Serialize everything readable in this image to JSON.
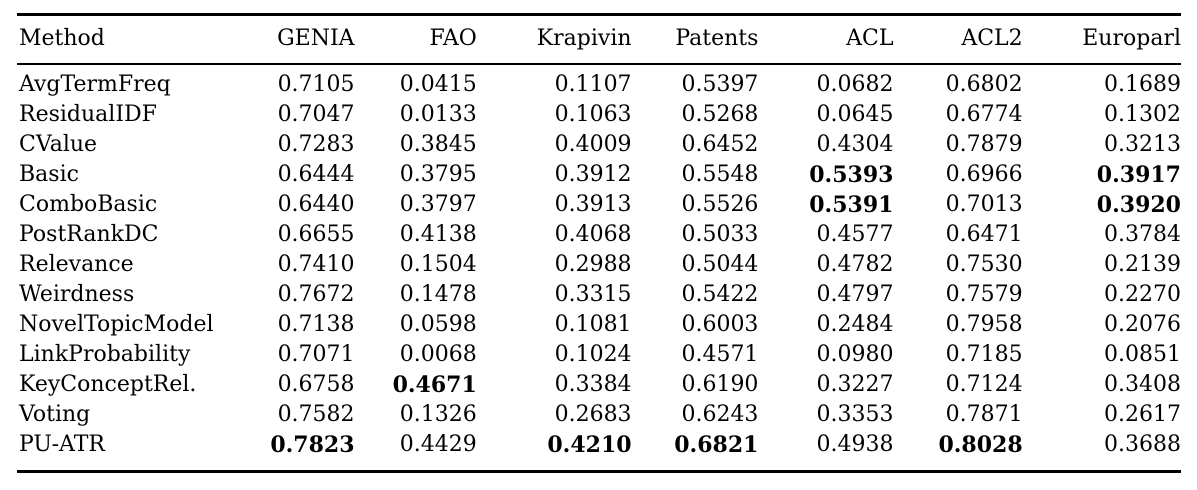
{
  "table": {
    "columns": [
      "Method",
      "GENIA",
      "FAO",
      "Krapivin",
      "Patents",
      "ACL",
      "ACL2",
      "Europarl"
    ],
    "rows": [
      {
        "method": "AvgTermFreq",
        "values": [
          "0.7105",
          "0.0415",
          "0.1107",
          "0.5397",
          "0.0682",
          "0.6802",
          "0.1689"
        ],
        "bold": [
          false,
          false,
          false,
          false,
          false,
          false,
          false
        ]
      },
      {
        "method": "ResidualIDF",
        "values": [
          "0.7047",
          "0.0133",
          "0.1063",
          "0.5268",
          "0.0645",
          "0.6774",
          "0.1302"
        ],
        "bold": [
          false,
          false,
          false,
          false,
          false,
          false,
          false
        ]
      },
      {
        "method": "CValue",
        "values": [
          "0.7283",
          "0.3845",
          "0.4009",
          "0.6452",
          "0.4304",
          "0.7879",
          "0.3213"
        ],
        "bold": [
          false,
          false,
          false,
          false,
          false,
          false,
          false
        ]
      },
      {
        "method": "Basic",
        "values": [
          "0.6444",
          "0.3795",
          "0.3912",
          "0.5548",
          "0.5393",
          "0.6966",
          "0.3917"
        ],
        "bold": [
          false,
          false,
          false,
          false,
          true,
          false,
          true
        ]
      },
      {
        "method": "ComboBasic",
        "values": [
          "0.6440",
          "0.3797",
          "0.3913",
          "0.5526",
          "0.5391",
          "0.7013",
          "0.3920"
        ],
        "bold": [
          false,
          false,
          false,
          false,
          true,
          false,
          true
        ]
      },
      {
        "method": "PostRankDC",
        "values": [
          "0.6655",
          "0.4138",
          "0.4068",
          "0.5033",
          "0.4577",
          "0.6471",
          "0.3784"
        ],
        "bold": [
          false,
          false,
          false,
          false,
          false,
          false,
          false
        ]
      },
      {
        "method": "Relevance",
        "values": [
          "0.7410",
          "0.1504",
          "0.2988",
          "0.5044",
          "0.4782",
          "0.7530",
          "0.2139"
        ],
        "bold": [
          false,
          false,
          false,
          false,
          false,
          false,
          false
        ]
      },
      {
        "method": "Weirdness",
        "values": [
          "0.7672",
          "0.1478",
          "0.3315",
          "0.5422",
          "0.4797",
          "0.7579",
          "0.2270"
        ],
        "bold": [
          false,
          false,
          false,
          false,
          false,
          false,
          false
        ]
      },
      {
        "method": "NovelTopicModel",
        "values": [
          "0.7138",
          "0.0598",
          "0.1081",
          "0.6003",
          "0.2484",
          "0.7958",
          "0.2076"
        ],
        "bold": [
          false,
          false,
          false,
          false,
          false,
          false,
          false
        ]
      },
      {
        "method": "LinkProbability",
        "values": [
          "0.7071",
          "0.0068",
          "0.1024",
          "0.4571",
          "0.0980",
          "0.7185",
          "0.0851"
        ],
        "bold": [
          false,
          false,
          false,
          false,
          false,
          false,
          false
        ]
      },
      {
        "method": "KeyConceptRel.",
        "values": [
          "0.6758",
          "0.4671",
          "0.3384",
          "0.6190",
          "0.3227",
          "0.7124",
          "0.3408"
        ],
        "bold": [
          false,
          true,
          false,
          false,
          false,
          false,
          false
        ]
      },
      {
        "method": "Voting",
        "values": [
          "0.7582",
          "0.1326",
          "0.2683",
          "0.6243",
          "0.3353",
          "0.7871",
          "0.2617"
        ],
        "bold": [
          false,
          false,
          false,
          false,
          false,
          false,
          false
        ]
      },
      {
        "method": "PU-ATR",
        "values": [
          "0.7823",
          "0.4429",
          "0.4210",
          "0.6821",
          "0.4938",
          "0.8028",
          "0.3688"
        ],
        "bold": [
          true,
          false,
          true,
          true,
          false,
          true,
          false
        ]
      }
    ]
  },
  "colors": {
    "text": "#000000",
    "background": "#ffffff",
    "rule": "#000000"
  }
}
